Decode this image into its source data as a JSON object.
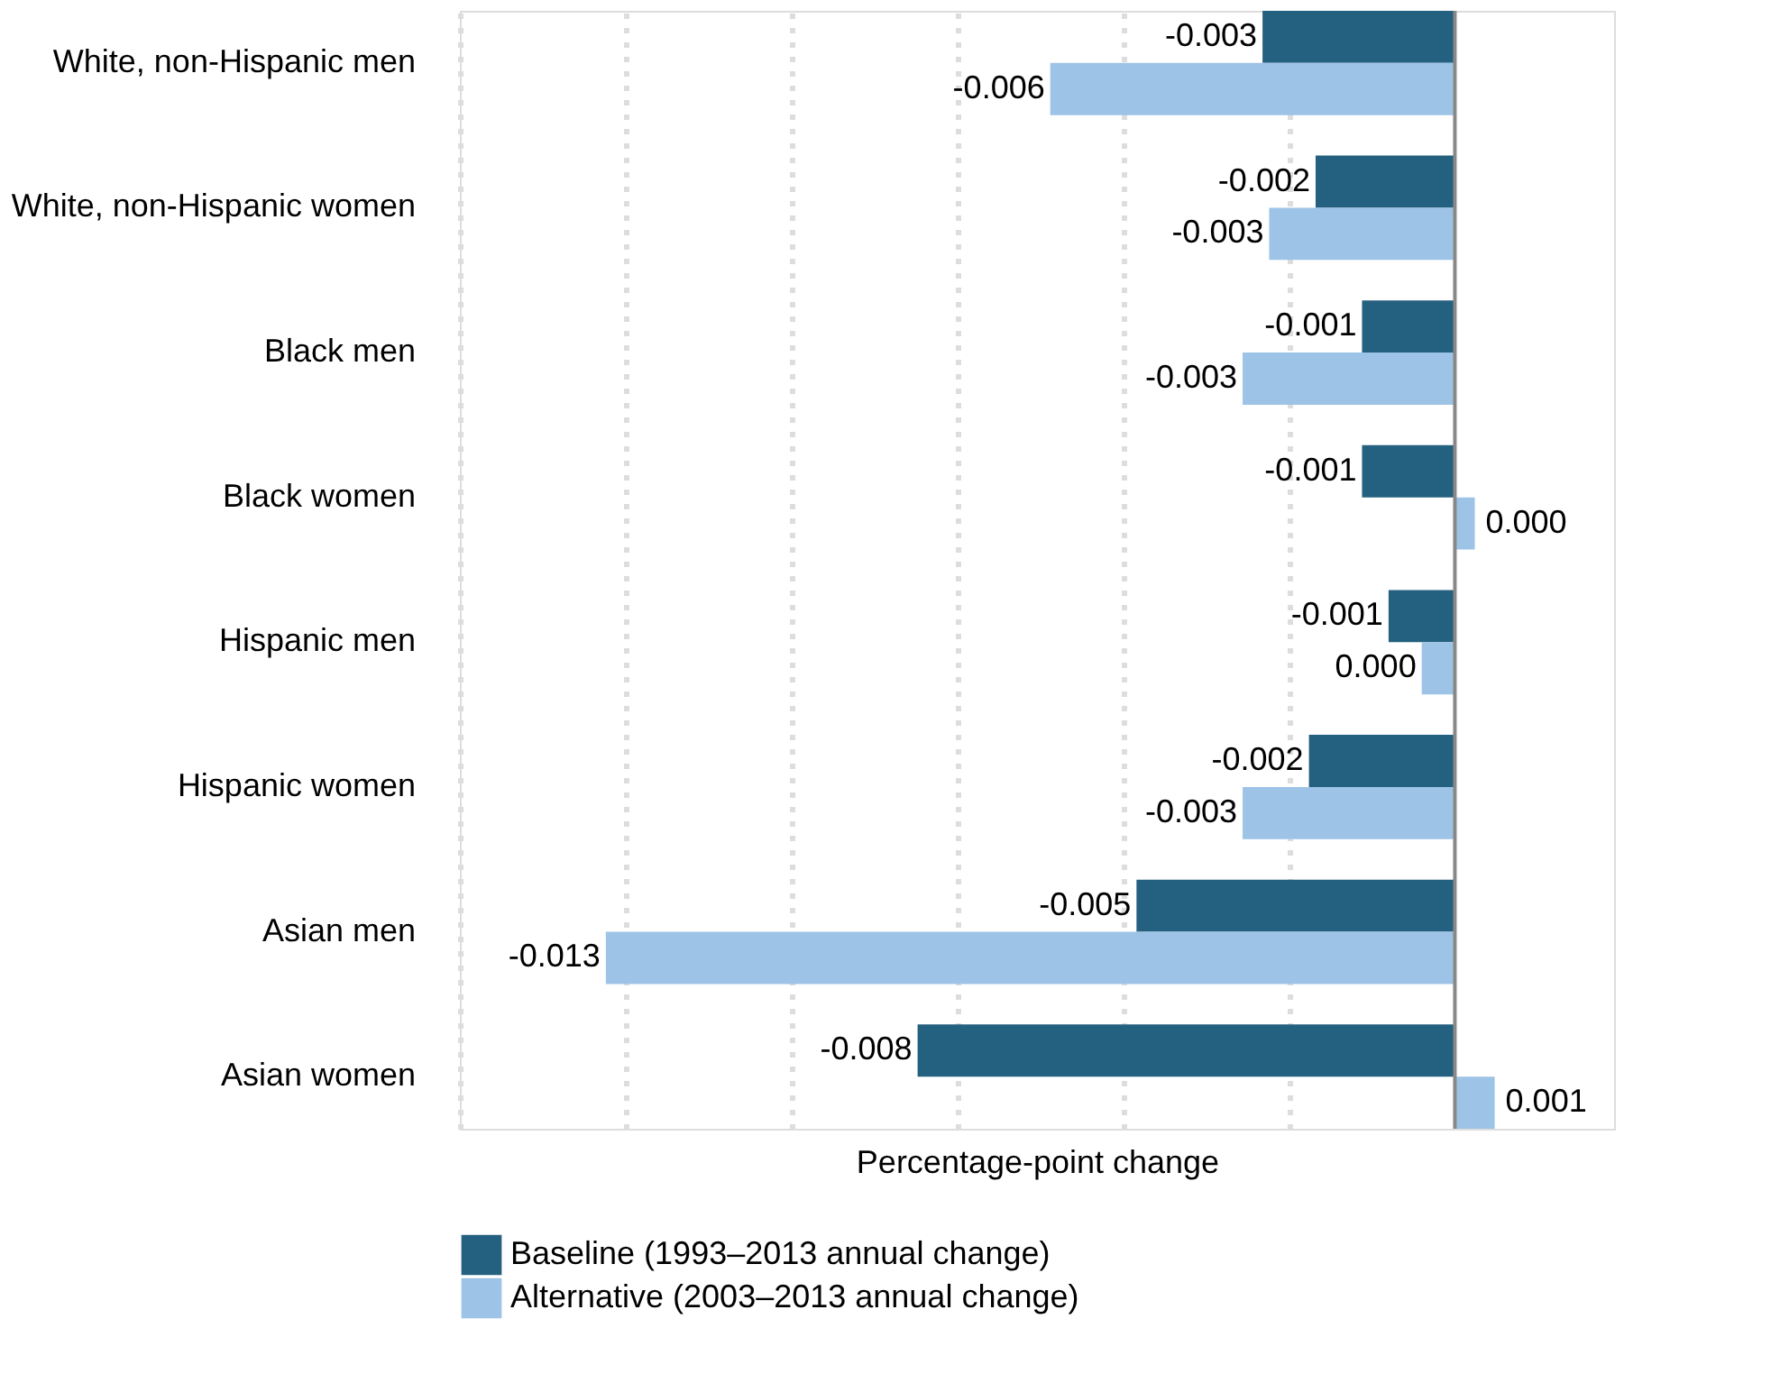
{
  "chart_data": {
    "type": "bar",
    "orientation": "horizontal",
    "xlabel": "Percentage-point change",
    "categories": [
      "White, non-Hispanic men",
      "White, non-Hispanic women",
      "Black men",
      "Black women",
      "Hispanic men",
      "Hispanic women",
      "Asian men",
      "Asian women"
    ],
    "series": [
      {
        "name": "Baseline (1993–2013 annual change)",
        "color": "#24607f",
        "values": [
          -0.0029,
          -0.0021,
          -0.0014,
          -0.0014,
          -0.001,
          -0.0022,
          -0.0048,
          -0.0081
        ],
        "value_labels": [
          "-0.003",
          "-0.002",
          "-0.001",
          "-0.001",
          "-0.001",
          "-0.002",
          "-0.005",
          "-0.008"
        ]
      },
      {
        "name": "Alternative (2003–2013 annual change)",
        "color": "#9dc3e6",
        "values": [
          -0.0061,
          -0.0028,
          -0.0032,
          0.0003,
          -0.0005,
          -0.0032,
          -0.0128,
          0.0006
        ],
        "value_labels": [
          "-0.006",
          "-0.003",
          "-0.003",
          "0.000",
          "0.000",
          "-0.003",
          "-0.013",
          "0.001"
        ]
      }
    ],
    "xlim": [
      -0.015,
      0.0024
    ],
    "xticks": [
      {
        "value": -0.015,
        "label": null
      },
      {
        "value": -0.0125,
        "label": null
      },
      {
        "value": -0.01,
        "label": null
      },
      {
        "value": -0.0075,
        "label": null
      },
      {
        "value": -0.005,
        "label": null
      },
      {
        "value": -0.0025,
        "label": null
      }
    ],
    "ref_lines": [
      {
        "axis": "x",
        "value": 0,
        "color": "#888888"
      }
    ],
    "grid": "x",
    "tick_labels": "y",
    "legend": "bottom"
  }
}
